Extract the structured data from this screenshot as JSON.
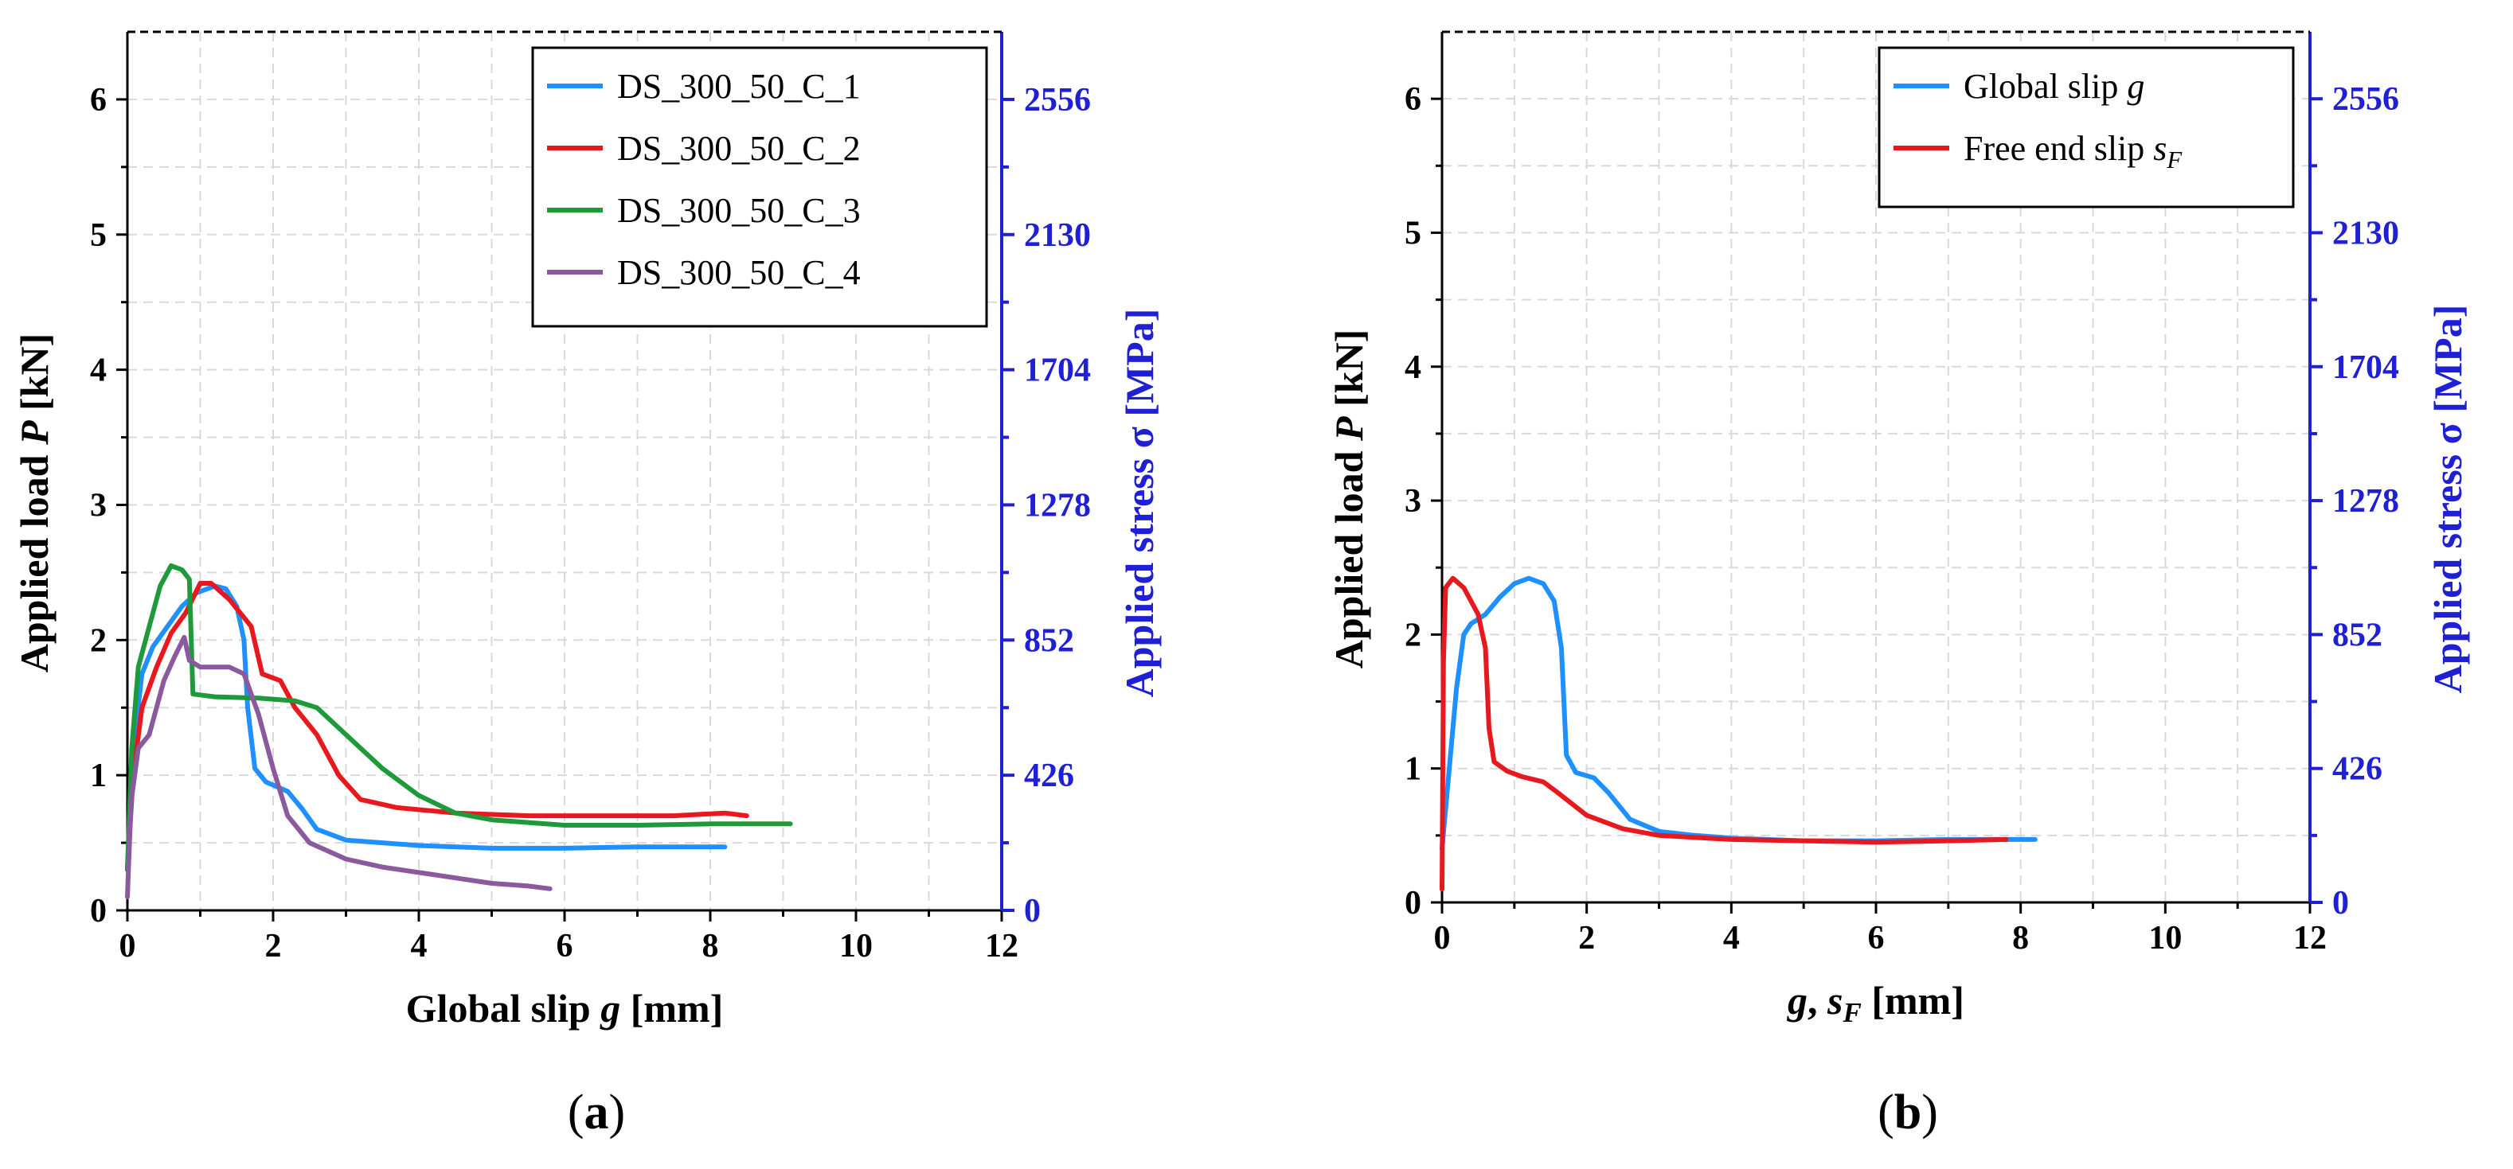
{
  "chart_data": [
    {
      "type": "line",
      "panel_label": "(a)",
      "xlabel": "Global slip g [mm]",
      "ylabel": "Applied load P [kN]",
      "ylabel_right": "Applied stress σ [MPa]",
      "xlim": [
        0,
        12
      ],
      "ylim": [
        0,
        6.5
      ],
      "x_ticks": [
        "0",
        "2",
        "4",
        "6",
        "8",
        "10",
        "12"
      ],
      "y_ticks": [
        "0",
        "1",
        "2",
        "3",
        "4",
        "5",
        "6"
      ],
      "y_right_ticks": [
        "0",
        "426",
        "852",
        "1278",
        "1704",
        "2130",
        "2556"
      ],
      "grid": true,
      "legend_position": "top-right",
      "series": [
        {
          "name": "DS_300_50_C_1",
          "color": "#1e90ff",
          "points": [
            [
              0,
              0.3
            ],
            [
              0.08,
              1.2
            ],
            [
              0.2,
              1.75
            ],
            [
              0.35,
              1.95
            ],
            [
              0.55,
              2.1
            ],
            [
              0.75,
              2.25
            ],
            [
              0.95,
              2.35
            ],
            [
              1.2,
              2.4
            ],
            [
              1.35,
              2.38
            ],
            [
              1.5,
              2.25
            ],
            [
              1.6,
              2.0
            ],
            [
              1.65,
              1.5
            ],
            [
              1.75,
              1.05
            ],
            [
              1.9,
              0.95
            ],
            [
              2.2,
              0.88
            ],
            [
              2.4,
              0.75
            ],
            [
              2.6,
              0.6
            ],
            [
              3.0,
              0.52
            ],
            [
              3.5,
              0.5
            ],
            [
              4.0,
              0.48
            ],
            [
              5.0,
              0.46
            ],
            [
              6.0,
              0.46
            ],
            [
              7.0,
              0.47
            ],
            [
              8.2,
              0.47
            ]
          ]
        },
        {
          "name": "DS_300_50_C_2",
          "color": "#e8191e",
          "points": [
            [
              0,
              0.3
            ],
            [
              0.08,
              1.0
            ],
            [
              0.2,
              1.5
            ],
            [
              0.4,
              1.8
            ],
            [
              0.6,
              2.05
            ],
            [
              0.8,
              2.2
            ],
            [
              1.0,
              2.42
            ],
            [
              1.15,
              2.42
            ],
            [
              1.4,
              2.3
            ],
            [
              1.7,
              2.1
            ],
            [
              1.85,
              1.75
            ],
            [
              2.1,
              1.7
            ],
            [
              2.3,
              1.5
            ],
            [
              2.6,
              1.3
            ],
            [
              2.9,
              1.0
            ],
            [
              3.2,
              0.82
            ],
            [
              3.7,
              0.76
            ],
            [
              4.5,
              0.72
            ],
            [
              5.5,
              0.7
            ],
            [
              6.5,
              0.7
            ],
            [
              7.5,
              0.7
            ],
            [
              8.2,
              0.72
            ],
            [
              8.5,
              0.7
            ]
          ]
        },
        {
          "name": "DS_300_50_C_3",
          "color": "#1e9a3a",
          "points": [
            [
              0,
              0.3
            ],
            [
              0.06,
              1.2
            ],
            [
              0.15,
              1.8
            ],
            [
              0.3,
              2.1
            ],
            [
              0.45,
              2.4
            ],
            [
              0.6,
              2.55
            ],
            [
              0.75,
              2.52
            ],
            [
              0.85,
              2.45
            ],
            [
              0.9,
              1.6
            ],
            [
              1.2,
              1.58
            ],
            [
              1.8,
              1.57
            ],
            [
              2.3,
              1.55
            ],
            [
              2.6,
              1.5
            ],
            [
              3.0,
              1.3
            ],
            [
              3.5,
              1.05
            ],
            [
              4.0,
              0.85
            ],
            [
              4.5,
              0.72
            ],
            [
              5.0,
              0.67
            ],
            [
              6.0,
              0.63
            ],
            [
              7.0,
              0.63
            ],
            [
              8.0,
              0.64
            ],
            [
              9.1,
              0.64
            ]
          ]
        },
        {
          "name": "DS_300_50_C_4",
          "color": "#8b5a9e",
          "points": [
            [
              0,
              0.1
            ],
            [
              0.05,
              0.8
            ],
            [
              0.15,
              1.2
            ],
            [
              0.3,
              1.3
            ],
            [
              0.5,
              1.7
            ],
            [
              0.65,
              1.88
            ],
            [
              0.78,
              2.02
            ],
            [
              0.85,
              1.85
            ],
            [
              1.0,
              1.8
            ],
            [
              1.4,
              1.8
            ],
            [
              1.6,
              1.75
            ],
            [
              1.8,
              1.45
            ],
            [
              2.0,
              1.05
            ],
            [
              2.2,
              0.7
            ],
            [
              2.5,
              0.5
            ],
            [
              3.0,
              0.38
            ],
            [
              3.5,
              0.32
            ],
            [
              4.0,
              0.28
            ],
            [
              4.5,
              0.24
            ],
            [
              5.0,
              0.2
            ],
            [
              5.5,
              0.18
            ],
            [
              5.8,
              0.16
            ]
          ]
        }
      ]
    },
    {
      "type": "line",
      "panel_label": "(b)",
      "xlabel": "g, sF [mm]",
      "ylabel": "Applied load P [kN]",
      "ylabel_right": "Applied stress σ [MPa]",
      "xlim": [
        0,
        12
      ],
      "ylim": [
        0,
        6.5
      ],
      "x_ticks": [
        "0",
        "2",
        "4",
        "6",
        "8",
        "10",
        "12"
      ],
      "y_ticks": [
        "0",
        "1",
        "2",
        "3",
        "4",
        "5",
        "6"
      ],
      "y_right_ticks": [
        "0",
        "426",
        "852",
        "1278",
        "1704",
        "2130",
        "2556"
      ],
      "grid": true,
      "legend_position": "top-right",
      "series": [
        {
          "name": "Global slip g",
          "color": "#1e90ff",
          "points": [
            [
              0,
              0.4
            ],
            [
              0.1,
              1.0
            ],
            [
              0.2,
              1.6
            ],
            [
              0.3,
              2.0
            ],
            [
              0.4,
              2.08
            ],
            [
              0.6,
              2.15
            ],
            [
              0.8,
              2.28
            ],
            [
              1.0,
              2.38
            ],
            [
              1.2,
              2.42
            ],
            [
              1.4,
              2.38
            ],
            [
              1.55,
              2.25
            ],
            [
              1.65,
              1.9
            ],
            [
              1.72,
              1.1
            ],
            [
              1.85,
              0.97
            ],
            [
              2.1,
              0.93
            ],
            [
              2.3,
              0.82
            ],
            [
              2.6,
              0.62
            ],
            [
              3.0,
              0.53
            ],
            [
              3.5,
              0.5
            ],
            [
              4.0,
              0.48
            ],
            [
              5.0,
              0.46
            ],
            [
              6.0,
              0.46
            ],
            [
              7.0,
              0.47
            ],
            [
              8.2,
              0.47
            ]
          ]
        },
        {
          "name": "Free end slip sF",
          "color": "#e8191e",
          "points": [
            [
              0,
              0.1
            ],
            [
              0.02,
              1.8
            ],
            [
              0.05,
              2.35
            ],
            [
              0.15,
              2.42
            ],
            [
              0.3,
              2.35
            ],
            [
              0.5,
              2.15
            ],
            [
              0.6,
              1.9
            ],
            [
              0.65,
              1.3
            ],
            [
              0.72,
              1.05
            ],
            [
              0.9,
              0.98
            ],
            [
              1.1,
              0.94
            ],
            [
              1.4,
              0.9
            ],
            [
              1.6,
              0.82
            ],
            [
              2.0,
              0.65
            ],
            [
              2.5,
              0.55
            ],
            [
              3.0,
              0.5
            ],
            [
              4.0,
              0.47
            ],
            [
              5.0,
              0.46
            ],
            [
              6.0,
              0.45
            ],
            [
              7.0,
              0.46
            ],
            [
              7.8,
              0.47
            ]
          ]
        }
      ]
    }
  ]
}
